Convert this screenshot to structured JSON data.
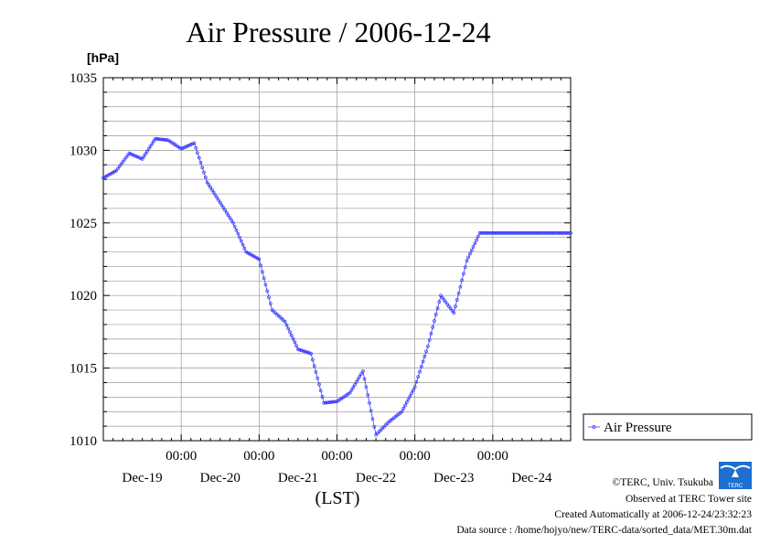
{
  "colors": {
    "series": "#3a3aff",
    "logo": "#1e6fd0",
    "grid": "#9a9a9a"
  },
  "chart_data": {
    "type": "line",
    "title": "Air Pressure / 2006-12-24",
    "ylabel": "[hPa]",
    "xlabel": "(LST)",
    "ylim": [
      1010,
      1035
    ],
    "yticks": [
      "1035",
      "1030",
      "1025",
      "1020",
      "1015",
      "1010"
    ],
    "ytick_values": [
      1035,
      1030,
      1025,
      1020,
      1015,
      1010
    ],
    "xlim_days": [
      0,
      6
    ],
    "xticks": [
      {
        "time": "00:00",
        "date": "Dec-20"
      },
      {
        "time": "00:00",
        "date": "Dec-21"
      },
      {
        "time": "00:00",
        "date": "Dec-22"
      },
      {
        "time": "00:00",
        "date": "Dec-23"
      },
      {
        "time": "00:00",
        "date": "Dec-24"
      }
    ],
    "first_date_label": "Dec-19",
    "grid": true,
    "legend_position": "right",
    "series": [
      {
        "name": "Air Pressure",
        "x_days": [
          0.0,
          0.167,
          0.333,
          0.5,
          0.667,
          0.833,
          1.0,
          1.167,
          1.333,
          1.5,
          1.667,
          1.833,
          2.0,
          2.167,
          2.333,
          2.5,
          2.667,
          2.833,
          3.0,
          3.167,
          3.333,
          3.5,
          3.667,
          3.833,
          4.0,
          4.167,
          4.333,
          4.5,
          4.667,
          4.833,
          5.0,
          5.167,
          5.333,
          5.5,
          5.667,
          5.833,
          6.0
        ],
        "values": [
          1028.1,
          1028.6,
          1029.8,
          1029.4,
          1030.8,
          1030.7,
          1030.1,
          1030.5,
          1027.8,
          1026.4,
          1025.0,
          1023.0,
          1022.5,
          1019.0,
          1018.2,
          1016.3,
          1016.0,
          1012.6,
          1012.7,
          1013.3,
          1014.8,
          1010.4,
          1011.3,
          1012.0,
          1013.7,
          1016.5,
          1020.0,
          1018.8,
          1022.4,
          1024.3,
          1024.3,
          1024.3,
          1024.3,
          1024.3,
          1024.3,
          1024.3,
          1024.3
        ]
      }
    ]
  },
  "legend": {
    "label": "Air Pressure"
  },
  "credits": {
    "copyright": "©TERC, Univ. Tsukuba",
    "observed": "Observed at TERC Tower site",
    "created": "Created Automatically at 2006-12-24/23:32:23",
    "source": "Data source : /home/hojyo/new/TERC-data/sorted_data/MET.30m.dat",
    "logo_text": "TERC"
  }
}
